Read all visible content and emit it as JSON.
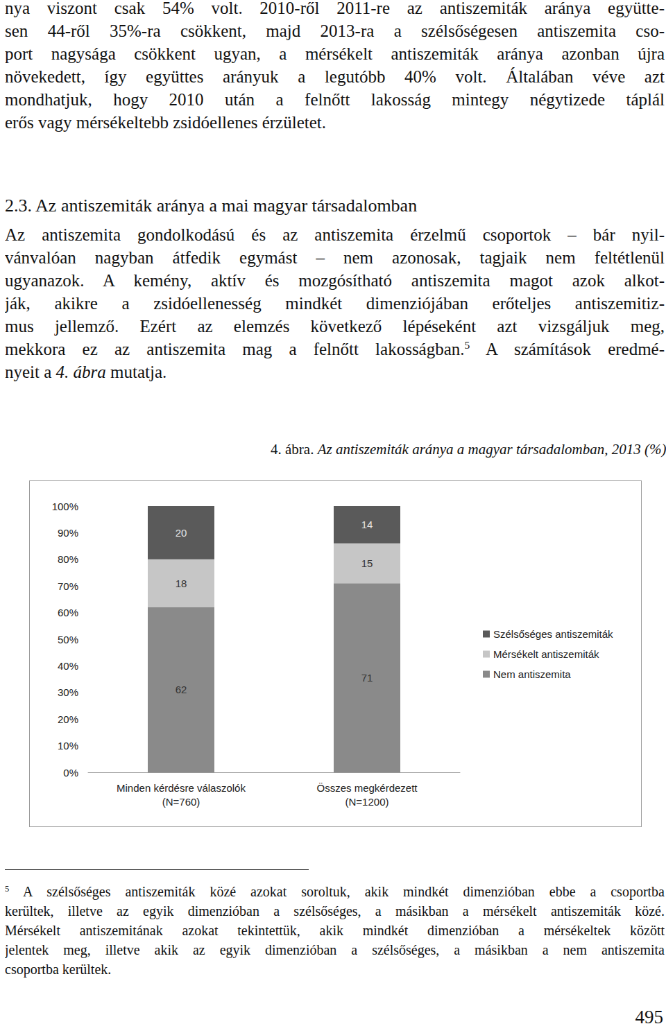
{
  "document": {
    "paragraph_1": [
      "nya viszont csak 54% volt. 2010-ről 2011-re az antiszemiták aránya együtte-",
      "sen 44-ről 35%-ra csökkent, majd 2013-ra a szélsőségesen antiszemita cso-",
      "port nagysága csökkent ugyan, a mérsékelt antiszemiták aránya azonban újra",
      "növekedett, így együttes arányuk a legutóbb 40% volt. Általában véve azt",
      "mondhatjuk, hogy 2010 után a felnőtt lakosság mintegy négytizede táplál",
      "erős vagy mérsékeltebb zsidóellenes érzületet."
    ],
    "heading": "2.3. Az antiszemiták aránya a mai magyar társadalomban",
    "paragraph_2": [
      "Az antiszemita gondolkodású és az antiszemita érzelmű csoportok – bár nyil-",
      "vánvalóan nagyban átfedik egymást – nem azonosak, tagjaik nem feltétlenül",
      "ugyanazok. A kemény, aktív és mozgósítható antiszemita magot azok alkot-",
      "ják, akikre a zsidóellenesség mindkét dimenziójában erőteljes antiszemitiz-",
      "mus jellemző. Ezért az elemzés következő lépéseként azt vizsgáljuk meg,",
      [
        {
          "text": "mekkora ez az antiszemita mag a felnőtt lakosságban."
        },
        {
          "text": "5",
          "style": "sup"
        },
        {
          "text": " A számítások eredmé-"
        }
      ],
      [
        {
          "text": "nyeit a "
        },
        {
          "text": "4. ábra",
          "style": "italic"
        },
        {
          "text": " mutatja."
        }
      ]
    ],
    "caption": [
      {
        "text": "4. ábra. "
      },
      {
        "text": "Az antiszemiták aránya a magyar társadalomban, 2013 (%)",
        "style": "italic"
      }
    ],
    "footnote": [
      [
        {
          "text": "5",
          "style": "sup"
        },
        {
          "text": " A szélsőséges antiszemiták közé azokat soroltuk, akik mindkét dimenzióban ebbe a csoportba"
        }
      ],
      "kerültek, illetve az egyik dimenzióban a szélsőséges, a másikban a mérsékelt antiszemiták közé.",
      "Mérsékelt antiszemitának azokat tekintettük, akik mindkét dimenzióban a mérsékeltek között",
      "jelentek meg, illetve akik az egyik dimenzióban a szélsőséges, a másikban a nem antiszemita",
      "csoportba kerültek."
    ],
    "page_number": "495"
  },
  "chart_data": {
    "type": "bar",
    "stacked": true,
    "data_labels": true,
    "grid": false,
    "legend": "right",
    "categories": [
      "Minden kérdésre válaszolók\n(N=760)",
      "Összes megkérdezett\n(N=1200)"
    ],
    "series": [
      {
        "name": "Nem antiszemita",
        "color": "#8a8a8a",
        "values": [
          62,
          71
        ]
      },
      {
        "name": "Mérsékelt antiszemiták",
        "color": "#c6c6c6",
        "values": [
          18,
          15
        ]
      },
      {
        "name": "Szélsőséges antiszemiták",
        "color": "#5a5a5a",
        "values": [
          20,
          14
        ]
      }
    ],
    "ylim": [
      0,
      100
    ],
    "yticks": [
      {
        "value": 0,
        "label": "0%"
      },
      {
        "value": 10,
        "label": "10%"
      },
      {
        "value": 20,
        "label": "20%"
      },
      {
        "value": 30,
        "label": "30%"
      },
      {
        "value": 40,
        "label": "40%"
      },
      {
        "value": 50,
        "label": "50%"
      },
      {
        "value": 60,
        "label": "60%"
      },
      {
        "value": 70,
        "label": "70%"
      },
      {
        "value": 80,
        "label": "80%"
      },
      {
        "value": 90,
        "label": "90%"
      },
      {
        "value": 100,
        "label": "100%"
      }
    ]
  }
}
